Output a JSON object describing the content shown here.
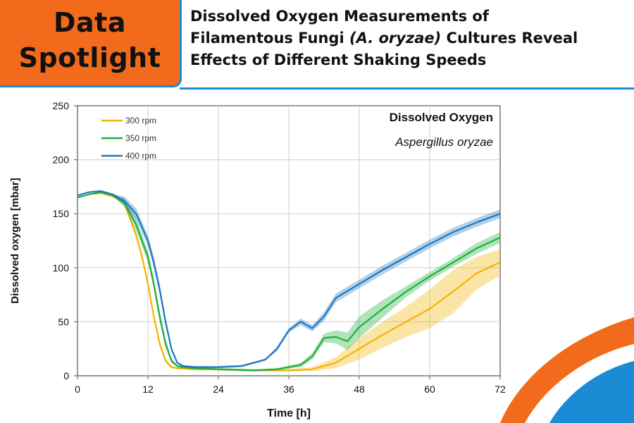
{
  "badge": {
    "line1": "Data",
    "line2": "Spotlight"
  },
  "headline": {
    "line1": "Dissolved Oxygen Measurements of",
    "line2_a": "Filamentous Fungi ",
    "line2_italic": "(A. oryzae)",
    "line2_b": " Cultures Reveal",
    "line3": "Effects of Different Shaking Speeds"
  },
  "colors": {
    "orange": "#f26a1b",
    "blue": "#1b8bd6",
    "s300": "#f4b400",
    "s350": "#1fae3c",
    "s400": "#1c78c4"
  },
  "chart_data": {
    "type": "line",
    "title": "Dissolved Oxygen",
    "subtitle": "Aspergillus oryzae",
    "xlabel": "Time  [h]",
    "ylabel": "Dissolved oxygen  [mbar]",
    "xlim": [
      0,
      72
    ],
    "ylim": [
      0,
      250
    ],
    "xticks": [
      0,
      12,
      24,
      36,
      48,
      60,
      72
    ],
    "yticks": [
      0,
      50,
      100,
      150,
      200,
      250
    ],
    "grid": true,
    "legend_position": "top-left",
    "series": [
      {
        "name": "300 rpm",
        "x": [
          0,
          2,
          4,
          6,
          8,
          10,
          11,
          12,
          13,
          14,
          15,
          16,
          17,
          20,
          24,
          30,
          36,
          40,
          44,
          48,
          52,
          56,
          60,
          64,
          68,
          72
        ],
        "y": [
          165,
          168,
          169,
          166,
          160,
          130,
          110,
          85,
          55,
          30,
          14,
          8,
          7,
          6,
          6,
          5,
          5,
          6,
          12,
          25,
          38,
          50,
          62,
          78,
          95,
          105
        ],
        "band": [
          0,
          0,
          0,
          0,
          2,
          3,
          3,
          3,
          3,
          3,
          2,
          1,
          1,
          1,
          1,
          1,
          1,
          2,
          5,
          10,
          12,
          14,
          18,
          20,
          15,
          12
        ]
      },
      {
        "name": "350 rpm",
        "x": [
          0,
          2,
          4,
          6,
          8,
          10,
          12,
          13,
          14,
          15,
          16,
          17,
          18,
          20,
          24,
          30,
          34,
          38,
          40,
          42,
          44,
          46,
          48,
          52,
          56,
          60,
          64,
          68,
          72
        ],
        "y": [
          165,
          168,
          170,
          167,
          160,
          140,
          110,
          85,
          55,
          30,
          14,
          9,
          8,
          7,
          6,
          5,
          6,
          10,
          18,
          35,
          36,
          32,
          45,
          62,
          78,
          92,
          105,
          118,
          128
        ],
        "band": [
          0,
          0,
          0,
          0,
          4,
          6,
          5,
          5,
          5,
          4,
          2,
          1,
          1,
          1,
          1,
          1,
          1,
          2,
          3,
          4,
          6,
          8,
          10,
          8,
          5,
          4,
          4,
          5,
          5
        ]
      },
      {
        "name": "400 rpm",
        "x": [
          0,
          2,
          4,
          6,
          8,
          10,
          12,
          13,
          14,
          15,
          16,
          17,
          18,
          20,
          24,
          28,
          32,
          34,
          36,
          38,
          40,
          42,
          44,
          48,
          52,
          56,
          60,
          64,
          68,
          72
        ],
        "y": [
          167,
          170,
          171,
          168,
          162,
          150,
          125,
          105,
          80,
          50,
          25,
          12,
          9,
          8,
          8,
          9,
          15,
          25,
          42,
          50,
          44,
          55,
          72,
          85,
          98,
          110,
          122,
          133,
          142,
          150
        ],
        "band": [
          0,
          0,
          0,
          0,
          4,
          5,
          5,
          5,
          5,
          4,
          2,
          1,
          1,
          1,
          1,
          1,
          1,
          2,
          2,
          3,
          3,
          4,
          4,
          4,
          4,
          4,
          4,
          4,
          4,
          4
        ]
      }
    ]
  }
}
